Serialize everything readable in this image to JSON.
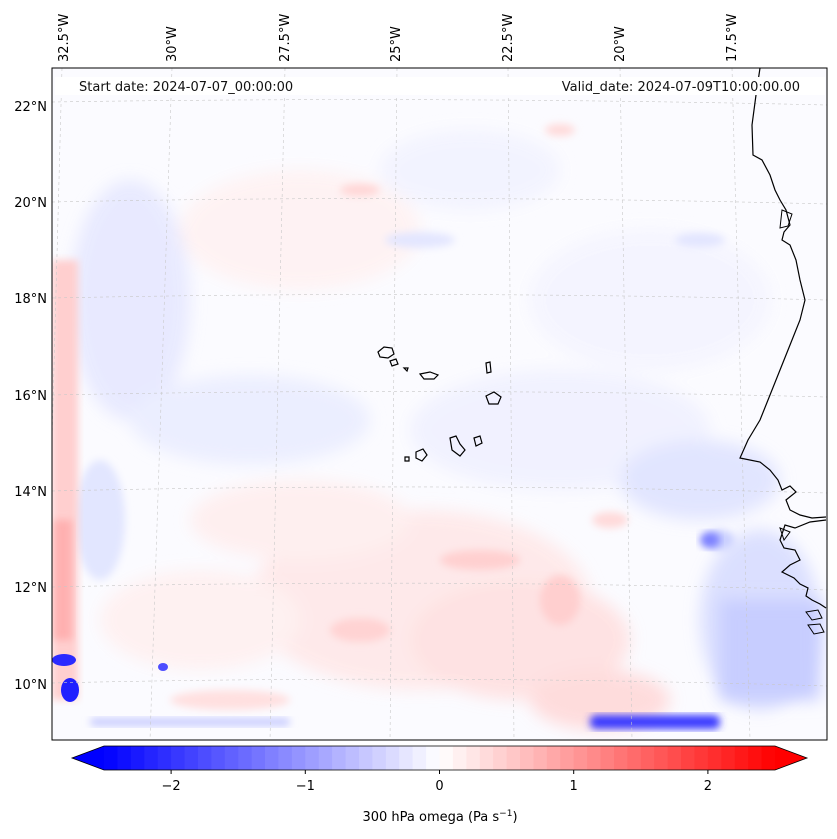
{
  "map": {
    "start_label": "Start date: 2024-07-07_00:00:00",
    "valid_label": "Valid_date: 2024-07-09T10:00:00.00",
    "lon_labels": [
      "32.5°W",
      "30°W",
      "27.5°W",
      "25°W",
      "22.5°W",
      "20°W",
      "17.5°W"
    ],
    "lat_labels": [
      "22°N",
      "20°N",
      "18°N",
      "16°N",
      "14°N",
      "12°N",
      "10°N"
    ],
    "field": "300 hPa omega",
    "colors": {
      "negative": "#0000ff",
      "zero": "#ffffff",
      "positive": "#ff0000",
      "coast": "#000000",
      "grid": "#c8c8c8"
    }
  },
  "colorbar": {
    "label": "300 hPa omega (Pa s",
    "label_exp": "−1",
    "label_close": ")",
    "ticks": [
      "−2",
      "−1",
      "0",
      "1",
      "2"
    ],
    "tick_values": [
      -2,
      -1,
      0,
      1,
      2
    ],
    "vmin": -2.5,
    "vmax": 2.5,
    "levels": 50
  }
}
